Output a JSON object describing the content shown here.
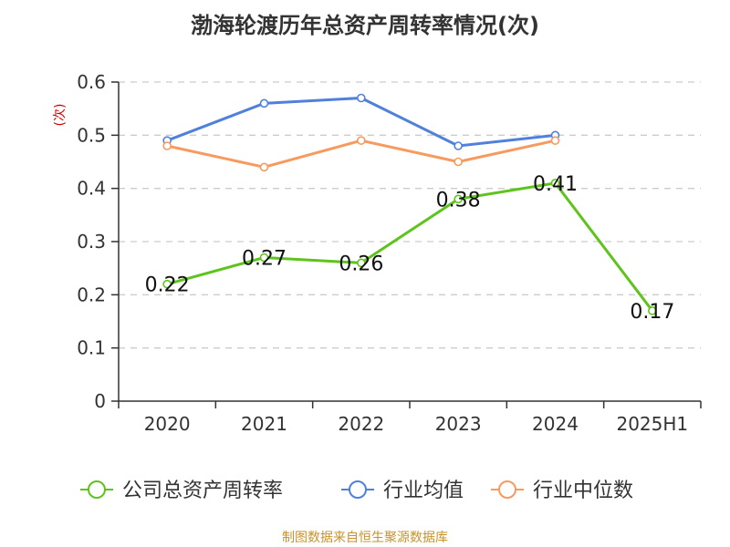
{
  "chart_data": {
    "type": "line",
    "title": "渤海轮渡历年总资产周转率情况(次)",
    "ylabel": "(次)",
    "xlabel": "",
    "categories": [
      "2020",
      "2021",
      "2022",
      "2023",
      "2024",
      "2025H1"
    ],
    "ylim": [
      0,
      0.6
    ],
    "yticks": [
      "0",
      "0.1",
      "0.2",
      "0.3",
      "0.4",
      "0.5",
      "0.6"
    ],
    "grid": true,
    "legend_position": "bottom",
    "series": [
      {
        "name": "公司总资产周转率",
        "color": "#5ec41c",
        "values": [
          0.22,
          0.27,
          0.26,
          0.38,
          0.41,
          0.17
        ],
        "show_labels": true,
        "labels": [
          "0.22",
          "0.27",
          "0.26",
          "0.38",
          "0.41",
          "0.17"
        ]
      },
      {
        "name": "行业均值",
        "color": "#4f81dc",
        "values": [
          0.49,
          0.56,
          0.57,
          0.48,
          0.5,
          null
        ],
        "show_labels": false
      },
      {
        "name": "行业中位数",
        "color": "#f79a5e",
        "values": [
          0.48,
          0.44,
          0.49,
          0.45,
          0.49,
          null
        ],
        "show_labels": false
      }
    ]
  },
  "source": "制图数据来自恒生聚源数据库"
}
